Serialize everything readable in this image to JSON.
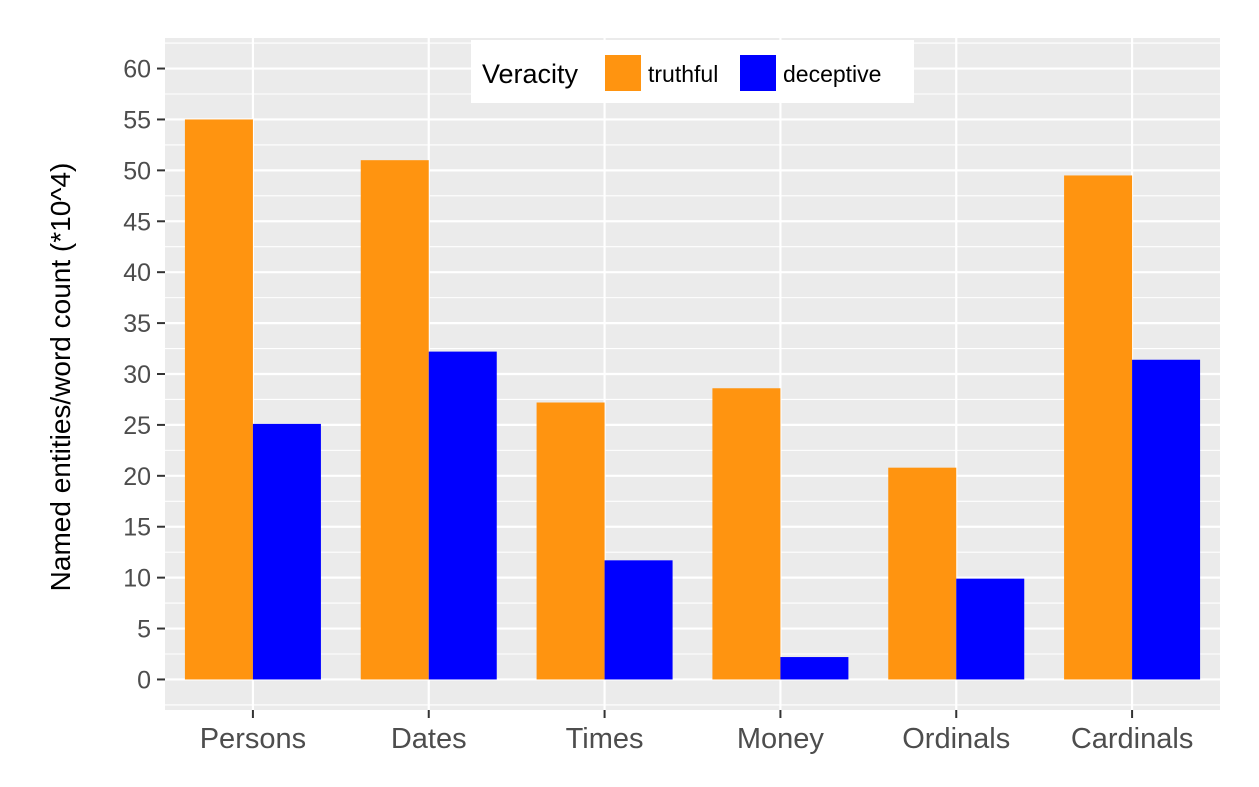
{
  "chart_data": {
    "type": "bar",
    "title": "",
    "xlabel": "",
    "ylabel": "Named entities/word count (*10^4)",
    "categories": [
      "Persons",
      "Dates",
      "Times",
      "Money",
      "Ordinals",
      "Cardinals"
    ],
    "series": [
      {
        "name": "truthful",
        "values": [
          55.0,
          51.0,
          27.2,
          28.6,
          20.8,
          49.5
        ],
        "color": "#FF9410"
      },
      {
        "name": "deceptive",
        "values": [
          25.1,
          32.2,
          11.7,
          2.2,
          9.9,
          31.4
        ],
        "color": "#0000FF"
      }
    ],
    "ylim": [
      -3,
      63
    ],
    "yticks": [
      0,
      5,
      10,
      15,
      20,
      25,
      30,
      35,
      40,
      45,
      50,
      55,
      60
    ],
    "grid": true,
    "legend": {
      "title": "Veracity",
      "position": "top-center",
      "entries": [
        "truthful",
        "deceptive"
      ]
    },
    "colors": {
      "panel_background": "#EBEBEB",
      "grid": "#FFFFFF",
      "tick_text": "#4D4D4D"
    }
  }
}
